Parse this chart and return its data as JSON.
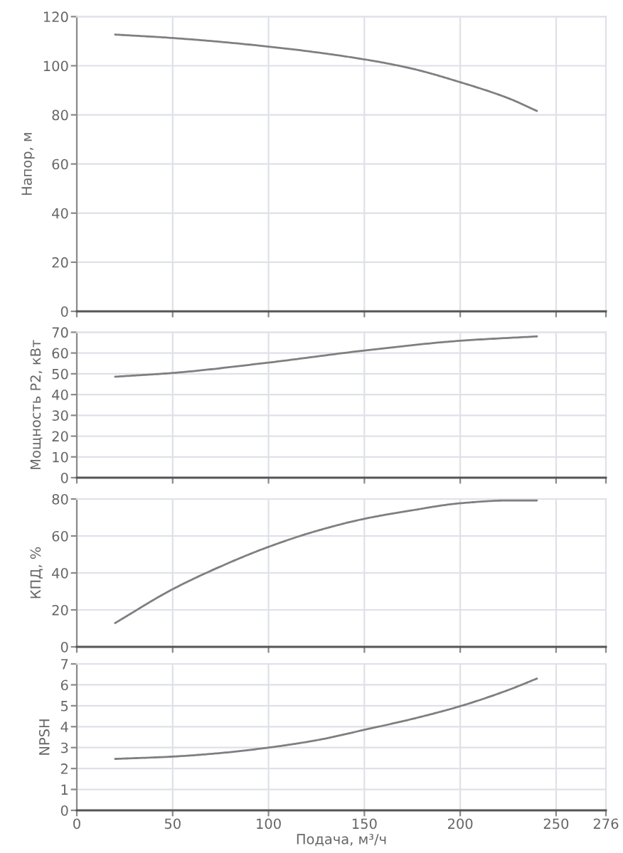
{
  "chart_data": [
    {
      "type": "line",
      "ylabel": "Напор, м",
      "x": [
        20,
        50,
        100,
        150,
        175,
        200,
        225,
        240
      ],
      "values": [
        112.7,
        111.3,
        107.8,
        102.6,
        98.8,
        93.3,
        86.8,
        81.6
      ],
      "color": "#7f7f7f",
      "xlim": [
        0,
        276
      ],
      "xticks": [
        0,
        50,
        100,
        150,
        200,
        250,
        276
      ],
      "ylim": [
        0,
        120
      ],
      "yticks": [
        0,
        20,
        40,
        60,
        80,
        100,
        120
      ],
      "grid": true,
      "tick_labels": "y"
    },
    {
      "type": "line",
      "ylabel": "Мощность P2, кВт",
      "x": [
        20,
        50,
        100,
        150,
        200,
        240
      ],
      "values": [
        48.6,
        50.4,
        55.4,
        61.2,
        65.9,
        68.0
      ],
      "color": "#7f7f7f",
      "xlim": [
        0,
        276
      ],
      "xticks": [
        0,
        50,
        100,
        150,
        200,
        250,
        276
      ],
      "ylim": [
        0,
        70
      ],
      "yticks": [
        0,
        10,
        20,
        30,
        40,
        50,
        60,
        70
      ],
      "grid": true,
      "tick_labels": "y"
    },
    {
      "type": "line",
      "ylabel": "КПД, %",
      "x": [
        20,
        50,
        75,
        100,
        125,
        150,
        175,
        200,
        225,
        240
      ],
      "values": [
        12.9,
        31.2,
        43.5,
        54.1,
        62.7,
        69.3,
        73.9,
        77.7,
        79.2,
        79.2
      ],
      "color": "#7f7f7f",
      "xlim": [
        0,
        276
      ],
      "xticks": [
        0,
        50,
        100,
        150,
        200,
        250,
        276
      ],
      "ylim": [
        0,
        80
      ],
      "yticks": [
        0,
        20,
        40,
        60,
        80
      ],
      "grid": true,
      "tick_labels": "y"
    },
    {
      "type": "line",
      "ylabel": "NPSH",
      "xlabel": "Подача, м³/ч",
      "x": [
        20,
        50,
        75,
        100,
        125,
        150,
        175,
        200,
        225,
        240
      ],
      "values": [
        2.46,
        2.57,
        2.74,
        3.0,
        3.35,
        3.85,
        4.37,
        4.98,
        5.75,
        6.3
      ],
      "color": "#7f7f7f",
      "xlim": [
        0,
        276
      ],
      "xticks": [
        0,
        50,
        100,
        150,
        200,
        250,
        276
      ],
      "ylim": [
        0,
        7
      ],
      "yticks": [
        0,
        1,
        2,
        3,
        4,
        5,
        6,
        7
      ],
      "grid": true
    }
  ]
}
